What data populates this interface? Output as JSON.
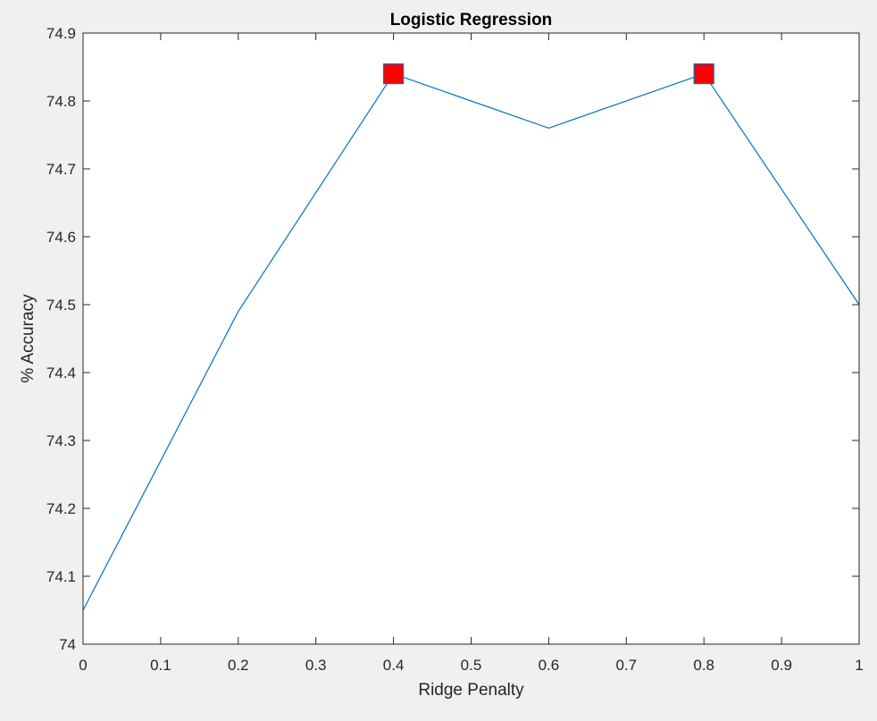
{
  "chart_data": {
    "type": "line",
    "title": "Logistic Regression",
    "xlabel": "Ridge Penalty",
    "ylabel": "% Accuracy",
    "xlim": [
      0,
      1
    ],
    "ylim": [
      74,
      74.9
    ],
    "x_ticks": [
      0,
      0.1,
      0.2,
      0.3,
      0.4,
      0.5,
      0.6,
      0.7,
      0.8,
      0.9,
      1
    ],
    "x_tick_labels": [
      "0",
      "0.1",
      "0.2",
      "0.3",
      "0.4",
      "0.5",
      "0.6",
      "0.7",
      "0.8",
      "0.9",
      "1"
    ],
    "y_ticks": [
      74,
      74.1,
      74.2,
      74.3,
      74.4,
      74.5,
      74.6,
      74.7,
      74.8,
      74.9
    ],
    "y_tick_labels": [
      "74",
      "74.1",
      "74.2",
      "74.3",
      "74.4",
      "74.5",
      "74.6",
      "74.7",
      "74.8",
      "74.9"
    ],
    "grid": false,
    "series": [
      {
        "color": "#0072bd",
        "x": [
          0,
          0.2,
          0.4,
          0.6,
          0.8,
          1.0
        ],
        "y": [
          74.05,
          74.49,
          74.84,
          74.76,
          74.84,
          74.5
        ]
      }
    ],
    "highlight_markers": {
      "shape": "square",
      "fill": "#ff0000",
      "edge": "#0072bd",
      "x": [
        0.4,
        0.8
      ],
      "y": [
        74.84,
        74.84
      ]
    }
  }
}
